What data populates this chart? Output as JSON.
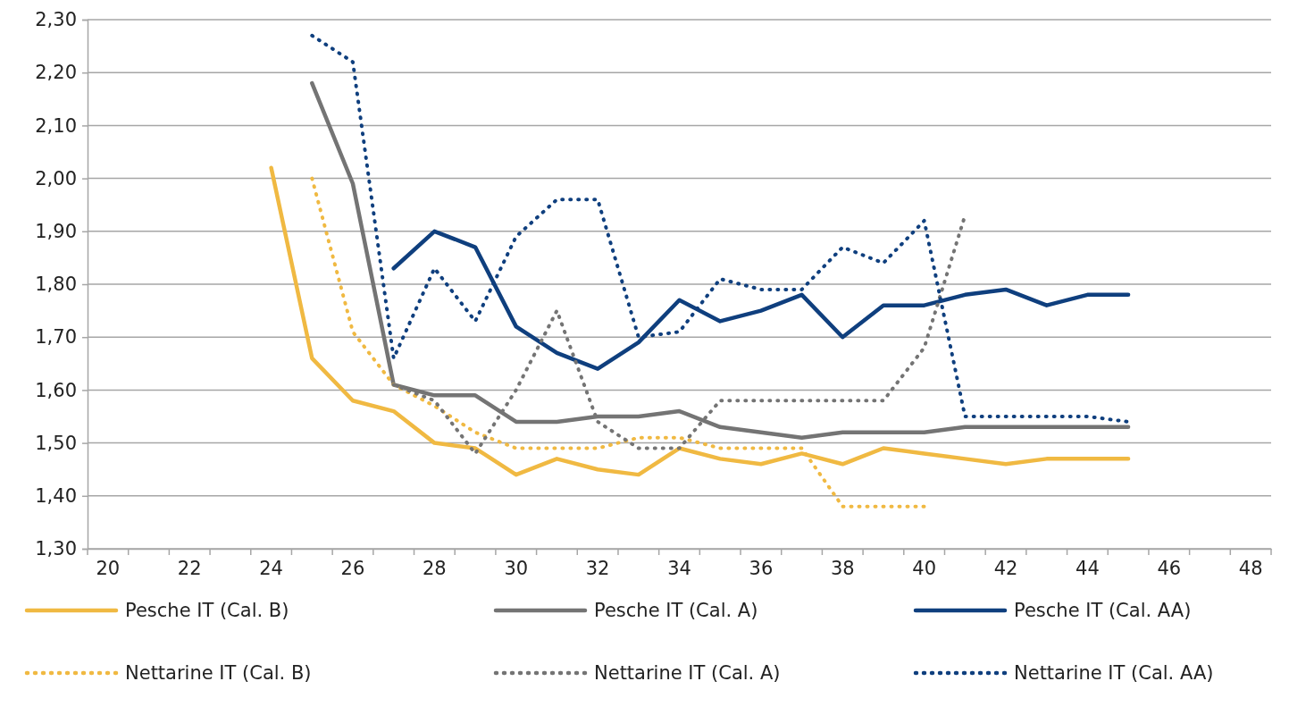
{
  "chart_data": {
    "type": "line",
    "categories": [
      "20",
      null,
      "22",
      null,
      "24",
      null,
      "26",
      null,
      "28",
      null,
      "30",
      null,
      "32",
      null,
      "34",
      null,
      "36",
      null,
      "38",
      null,
      "40",
      null,
      "42",
      null,
      "44",
      null,
      "46",
      null,
      "48"
    ],
    "series": [
      {
        "name": "Pesche IT (Cal. B)",
        "color": "#f0b942",
        "line_style": "solid",
        "values": [
          null,
          null,
          null,
          null,
          2.02,
          1.66,
          1.58,
          1.56,
          1.5,
          1.49,
          1.44,
          1.47,
          1.45,
          1.44,
          1.49,
          1.47,
          1.46,
          1.48,
          1.46,
          1.49,
          1.48,
          1.47,
          1.46,
          1.47,
          1.47,
          1.47,
          null,
          null,
          null
        ]
      },
      {
        "name": "Pesche IT (Cal. A)",
        "color": "#747474",
        "line_style": "solid",
        "values": [
          null,
          null,
          null,
          null,
          null,
          2.18,
          1.99,
          1.61,
          1.59,
          1.59,
          1.54,
          1.54,
          1.55,
          1.55,
          1.56,
          1.53,
          1.52,
          1.51,
          1.52,
          1.52,
          1.52,
          1.53,
          1.53,
          1.53,
          1.53,
          1.53,
          null,
          null,
          null
        ]
      },
      {
        "name": "Pesche IT (Cal. AA)",
        "color": "#0f3f7e",
        "line_style": "solid",
        "values": [
          null,
          null,
          null,
          null,
          null,
          null,
          null,
          1.83,
          1.9,
          1.87,
          1.72,
          1.67,
          1.64,
          1.69,
          1.77,
          1.73,
          1.75,
          1.78,
          1.7,
          1.76,
          1.76,
          1.78,
          1.79,
          1.76,
          1.78,
          1.78,
          null,
          null,
          null
        ]
      },
      {
        "name": "Nettarine IT (Cal. B)",
        "color": "#f0b942",
        "line_style": "dotted",
        "values": [
          null,
          null,
          null,
          null,
          null,
          2.0,
          1.71,
          1.61,
          1.57,
          1.52,
          1.49,
          1.49,
          1.49,
          1.51,
          1.51,
          1.49,
          1.49,
          1.49,
          1.38,
          1.38,
          1.38,
          null,
          null,
          null,
          null,
          null,
          null,
          null,
          null
        ]
      },
      {
        "name": "Nettarine IT (Cal. A)",
        "color": "#747474",
        "line_style": "dotted",
        "values": [
          null,
          null,
          null,
          null,
          null,
          null,
          null,
          1.61,
          1.58,
          1.48,
          1.6,
          1.75,
          1.54,
          1.49,
          1.49,
          1.58,
          1.58,
          1.58,
          1.58,
          1.58,
          1.68,
          1.93,
          null,
          null,
          null,
          null,
          null,
          null,
          null
        ]
      },
      {
        "name": "Nettarine IT (Cal. AA)",
        "color": "#0f3f7e",
        "line_style": "dotted",
        "values": [
          null,
          null,
          null,
          null,
          null,
          2.27,
          2.22,
          1.66,
          1.83,
          1.73,
          1.89,
          1.96,
          1.96,
          1.7,
          1.71,
          1.81,
          1.79,
          1.79,
          1.87,
          1.84,
          1.92,
          1.55,
          1.55,
          1.55,
          1.55,
          1.54,
          null,
          null,
          null
        ]
      }
    ],
    "ylim": [
      1.3,
      2.3
    ],
    "yticks": [
      {
        "value": 1.3,
        "label": "1,30"
      },
      {
        "value": 1.4,
        "label": "1,40"
      },
      {
        "value": 1.5,
        "label": "1,50"
      },
      {
        "value": 1.6,
        "label": "1,60"
      },
      {
        "value": 1.7,
        "label": "1,70"
      },
      {
        "value": 1.8,
        "label": "1,80"
      },
      {
        "value": 1.9,
        "label": "1,90"
      },
      {
        "value": 2.0,
        "label": "2,00"
      },
      {
        "value": 2.1,
        "label": "2,10"
      },
      {
        "value": 2.2,
        "label": "2,20"
      },
      {
        "value": 2.3,
        "label": "2,30"
      }
    ],
    "grid": "y",
    "legend": "bottom",
    "marker": "none"
  }
}
